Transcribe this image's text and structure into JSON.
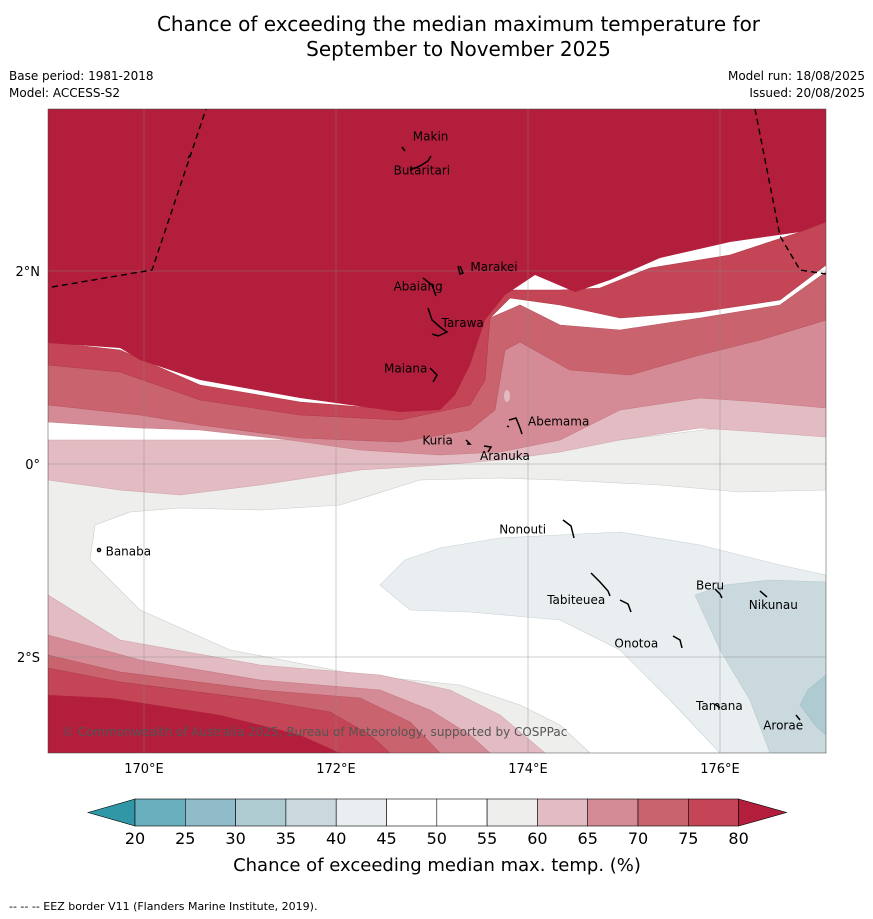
{
  "title_line1": "Chance of exceeding the median maximum temperature for",
  "title_line2": "September to November 2025",
  "meta_left": [
    "Base period: 1981-2018",
    "Model: ACCESS-S2"
  ],
  "meta_right": [
    "Model run: 18/08/2025",
    "Issued: 20/08/2025"
  ],
  "map": {
    "lon_range": [
      169,
      177.1
    ],
    "lat_range": [
      -3.0,
      3.8
    ],
    "x_ticks": [
      {
        "lon": 170,
        "label": "170°E"
      },
      {
        "lon": 172,
        "label": "172°E"
      },
      {
        "lon": 174,
        "label": "174°E"
      },
      {
        "lon": 176,
        "label": "176°E"
      }
    ],
    "y_ticks": [
      {
        "lat": 2,
        "label": "2°N"
      },
      {
        "lat": 0,
        "label": "0°"
      },
      {
        "lat": -2,
        "label": "2°S"
      }
    ],
    "places": [
      {
        "name": "Makin",
        "lon": 172.8,
        "lat": 3.35
      },
      {
        "name": "Butaritari",
        "lon": 172.6,
        "lat": 3.0
      },
      {
        "name": "Marakei",
        "lon": 173.4,
        "lat": 2.0
      },
      {
        "name": "Abaiang",
        "lon": 172.6,
        "lat": 1.8
      },
      {
        "name": "Tarawa",
        "lon": 173.1,
        "lat": 1.42
      },
      {
        "name": "Maiana",
        "lon": 172.5,
        "lat": 0.95
      },
      {
        "name": "Abemama",
        "lon": 174.0,
        "lat": 0.4
      },
      {
        "name": "Kuria",
        "lon": 172.9,
        "lat": 0.2
      },
      {
        "name": "Aranuka",
        "lon": 173.5,
        "lat": 0.04
      },
      {
        "name": "Banaba",
        "lon": 169.6,
        "lat": -0.95
      },
      {
        "name": "Nonouti",
        "lon": 173.7,
        "lat": -0.72
      },
      {
        "name": "Tabiteuea",
        "lon": 174.2,
        "lat": -1.45
      },
      {
        "name": "Beru",
        "lon": 175.75,
        "lat": -1.3
      },
      {
        "name": "Nikunau",
        "lon": 176.3,
        "lat": -1.5
      },
      {
        "name": "Onotoa",
        "lon": 174.9,
        "lat": -1.9
      },
      {
        "name": "Tamana",
        "lon": 175.75,
        "lat": -2.55
      },
      {
        "name": "Arorae",
        "lon": 176.45,
        "lat": -2.75
      }
    ],
    "copyright": "© Commonwealth of Australia 2025, Bureau of Meteorology, supported by COSPPac"
  },
  "colorbar": {
    "ticks": [
      "20",
      "25",
      "30",
      "35",
      "40",
      "45",
      "50",
      "55",
      "60",
      "65",
      "70",
      "75",
      "80"
    ],
    "colors": [
      "#2f97a6",
      "#6aafbe",
      "#8fbcc8",
      "#aecbd2",
      "#cad9de",
      "#e9eff1",
      "#ffffff",
      "#ffffff",
      "#eeeeec",
      "#e2bcc2",
      "#d58b95",
      "#c9646f",
      "#c44555",
      "#b21e3b"
    ],
    "label": "Chance of exceeding median max. temp. (%)"
  },
  "footnote": "-- -- -- EEZ border V11 (Flanders Marine Institute, 2019)."
}
